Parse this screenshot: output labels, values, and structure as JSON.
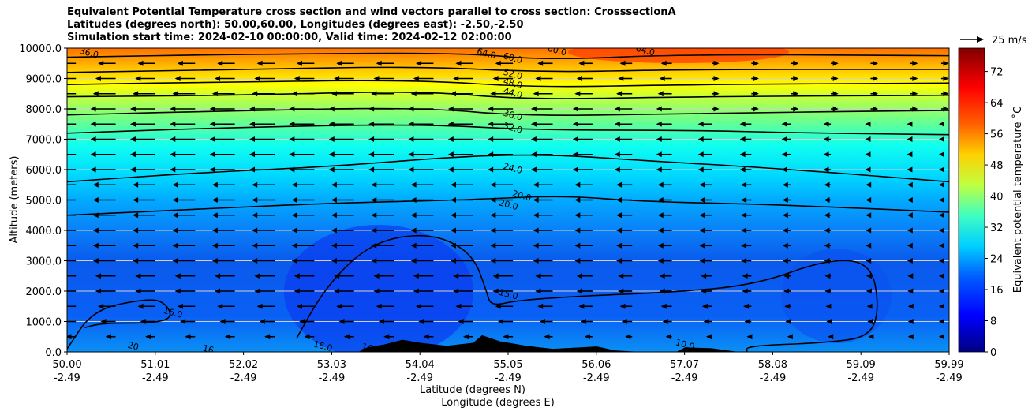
{
  "chart_data": {
    "type": "heatmap",
    "title_lines": [
      "Equivalent Potential Temperature cross section and wind vectors parallel to cross section: CrosssectionA",
      "Latitudes (degrees north): 50.00,60.00, Longitudes (degrees east): -2.50,-2.50",
      "Simulation start time: 2024-02-10 00:00:00, Valid time: 2024-02-12 02:00:00"
    ],
    "ylabel": "Altitude (meters)",
    "xlabel_lat": "Latitude (degrees N)",
    "xlabel_lon": "Longitude (degrees E)",
    "ylim": [
      0,
      10000
    ],
    "xlim": [
      50.0,
      59.99
    ],
    "yticks": [
      "0.0",
      "1000.0",
      "2000.0",
      "3000.0",
      "4000.0",
      "5000.0",
      "6000.0",
      "7000.0",
      "8000.0",
      "9000.0",
      "10000.0"
    ],
    "xticks_lat": [
      "50.00",
      "51.01",
      "52.02",
      "53.03",
      "54.04",
      "55.05",
      "56.06",
      "57.07",
      "58.08",
      "59.09",
      "59.99"
    ],
    "xticks_lon": [
      "-2.49",
      "-2.49",
      "-2.49",
      "-2.49",
      "-2.49",
      "-2.49",
      "-2.49",
      "-2.49",
      "-2.49",
      "-2.49",
      "-2.49"
    ],
    "colorbar": {
      "label": "Equivalent potential temperature ˚C",
      "ticks": [
        "0",
        "8",
        "16",
        "24",
        "32",
        "40",
        "48",
        "56",
        "64",
        "72"
      ],
      "range": [
        0,
        78
      ]
    },
    "quiver_key": "25 m/s",
    "contours": [
      {
        "level": "16.0",
        "points": [
          [
            50.0,
            100
          ],
          [
            50.3,
            1400
          ],
          [
            50.9,
            1750
          ],
          [
            51.1,
            1650
          ],
          [
            51.2,
            1150
          ],
          [
            51.0,
            950
          ],
          [
            50.4,
            950
          ],
          [
            50.2,
            800
          ]
        ]
      },
      {
        "level": "15.0",
        "points": [
          [
            52.6,
            450
          ],
          [
            52.9,
            2000
          ],
          [
            53.3,
            3250
          ],
          [
            53.7,
            3800
          ],
          [
            54.2,
            3850
          ],
          [
            54.6,
            3200
          ],
          [
            54.75,
            2000
          ],
          [
            54.8,
            1500
          ],
          [
            55.1,
            1700
          ],
          [
            55.9,
            1850
          ],
          [
            56.8,
            1950
          ],
          [
            57.8,
            2200
          ],
          [
            58.6,
            3050
          ],
          [
            59.1,
            2950
          ],
          [
            59.2,
            1500
          ],
          [
            59.1,
            500
          ],
          [
            58.6,
            300
          ],
          [
            57.7,
            200
          ],
          [
            57.7,
            0
          ]
        ]
      },
      {
        "level": "20.0",
        "points": [
          [
            50.0,
            4500
          ],
          [
            51.5,
            4700
          ],
          [
            53.0,
            4900
          ],
          [
            54.5,
            5000
          ],
          [
            55.6,
            5150
          ],
          [
            56.5,
            4950
          ],
          [
            58.0,
            4850
          ],
          [
            59.99,
            4600
          ]
        ]
      },
      {
        "level": "24.0",
        "points": [
          [
            50.0,
            5600
          ],
          [
            51.5,
            5900
          ],
          [
            53.0,
            6100
          ],
          [
            54.5,
            6450
          ],
          [
            55.5,
            6500
          ],
          [
            56.5,
            6300
          ],
          [
            58.0,
            6050
          ],
          [
            59.99,
            5600
          ]
        ]
      },
      {
        "level": "32.0",
        "points": [
          [
            50.0,
            7200
          ],
          [
            52.0,
            7400
          ],
          [
            54.0,
            7500
          ],
          [
            55.3,
            7300
          ],
          [
            57.0,
            7300
          ],
          [
            58.5,
            7200
          ],
          [
            59.99,
            7150
          ]
        ]
      },
      {
        "level": "36.0",
        "points": [
          [
            50.0,
            7800
          ],
          [
            52.0,
            7950
          ],
          [
            54.0,
            8050
          ],
          [
            55.2,
            7750
          ],
          [
            57.0,
            7850
          ],
          [
            59.99,
            7950
          ]
        ]
      },
      {
        "level": "44.0",
        "points": [
          [
            50.0,
            8400
          ],
          [
            52.0,
            8450
          ],
          [
            54.0,
            8600
          ],
          [
            55.2,
            8300
          ],
          [
            57.0,
            8400
          ],
          [
            59.99,
            8450
          ]
        ]
      },
      {
        "level": "48.0",
        "points": [
          [
            50.0,
            8800
          ],
          [
            52.0,
            8900
          ],
          [
            54.0,
            8950
          ],
          [
            55.3,
            8700
          ],
          [
            57.0,
            8800
          ],
          [
            59.99,
            8850
          ]
        ]
      },
      {
        "level": "52.0",
        "points": [
          [
            50.0,
            9200
          ],
          [
            52.0,
            9300
          ],
          [
            54.0,
            9400
          ],
          [
            55.4,
            9200
          ],
          [
            57.0,
            9300
          ],
          [
            59.99,
            9300
          ]
        ]
      },
      {
        "level": "60.0",
        "points": [
          [
            50.0,
            9700
          ],
          [
            52.0,
            9800
          ],
          [
            54.5,
            9850
          ],
          [
            55.4,
            9600
          ],
          [
            57.0,
            9800
          ],
          [
            59.99,
            9750
          ]
        ]
      }
    ],
    "contour_labels": [
      {
        "text": "36.0",
        "x": 50.25,
        "y": 9850
      },
      {
        "text": "64.0",
        "x": 54.75,
        "y": 9830
      },
      {
        "text": "60.0",
        "x": 55.05,
        "y": 9680
      },
      {
        "text": "60.0",
        "x": 55.55,
        "y": 9930
      },
      {
        "text": "64.0",
        "x": 56.55,
        "y": 9930
      },
      {
        "text": "52.0",
        "x": 55.05,
        "y": 9150
      },
      {
        "text": "48.0",
        "x": 55.05,
        "y": 8850
      },
      {
        "text": "44.0",
        "x": 55.05,
        "y": 8530
      },
      {
        "text": "36.0",
        "x": 55.05,
        "y": 7800
      },
      {
        "text": "32.0",
        "x": 55.05,
        "y": 7380
      },
      {
        "text": "24.0",
        "x": 55.05,
        "y": 6050
      },
      {
        "text": "20.0",
        "x": 55.15,
        "y": 5150
      },
      {
        "text": "20.0",
        "x": 55.0,
        "y": 4850
      },
      {
        "text": "15.0",
        "x": 55.0,
        "y": 1900
      },
      {
        "text": "16.0",
        "x": 51.2,
        "y": 1300
      },
      {
        "text": "16",
        "x": 51.6,
        "y": 100
      },
      {
        "text": "20",
        "x": 50.75,
        "y": 200
      },
      {
        "text": "16.0",
        "x": 52.9,
        "y": 200
      },
      {
        "text": "16",
        "x": 53.4,
        "y": 150
      },
      {
        "text": "10.0",
        "x": 57.0,
        "y": 250
      }
    ],
    "terrain": [
      [
        53.3,
        0
      ],
      [
        53.4,
        150
      ],
      [
        53.6,
        250
      ],
      [
        53.8,
        400
      ],
      [
        54.0,
        300
      ],
      [
        54.3,
        200
      ],
      [
        54.6,
        300
      ],
      [
        54.7,
        550
      ],
      [
        54.9,
        350
      ],
      [
        55.2,
        200
      ],
      [
        55.5,
        100
      ],
      [
        56.0,
        180
      ],
      [
        56.2,
        50
      ],
      [
        56.5,
        0
      ],
      [
        56.9,
        0
      ],
      [
        57.0,
        150
      ],
      [
        57.3,
        120
      ],
      [
        57.6,
        0
      ]
    ],
    "wind": {
      "levels_m": [
        500,
        1000,
        1500,
        2000,
        2500,
        3000,
        3500,
        4000,
        4500,
        5000,
        5500,
        6000,
        6500,
        7000,
        7500,
        8000,
        8500,
        9000,
        9500
      ],
      "columns_lat": [
        50.1,
        50.55,
        51.0,
        51.45,
        51.9,
        52.35,
        52.8,
        53.25,
        53.7,
        54.15,
        54.6,
        55.05,
        55.5,
        55.95,
        56.4,
        56.85,
        57.3,
        57.75,
        58.2,
        58.65,
        59.1,
        59.55,
        59.9
      ],
      "u_profile": [
        -4,
        -6,
        -7,
        -8,
        -8,
        -9,
        -9,
        -9,
        -9,
        -9,
        -9,
        -10,
        -10,
        -10,
        -10,
        -10,
        -9,
        -8,
        -7
      ]
    }
  }
}
